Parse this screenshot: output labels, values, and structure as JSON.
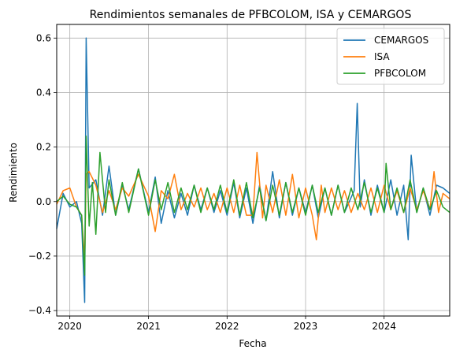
{
  "chart_data": {
    "type": "line",
    "title": "Rendimientos semanales de PFBCOLOM, ISA y CEMARGOS",
    "xlabel": "Fecha",
    "ylabel": "Rendimiento",
    "xlim": [
      "2019-11-01",
      "2024-11-01"
    ],
    "ylim": [
      -0.42,
      0.65
    ],
    "x_ticks": [
      "2020",
      "2021",
      "2022",
      "2023",
      "2024"
    ],
    "x_tick_dates": [
      "2020-01-01",
      "2021-01-01",
      "2022-01-01",
      "2023-01-01",
      "2024-01-01"
    ],
    "y_ticks": [
      -0.4,
      -0.2,
      0.0,
      0.2,
      0.4,
      0.6
    ],
    "y_tick_labels": [
      "−0.4",
      "−0.2",
      "0.0",
      "0.2",
      "0.4",
      "0.6"
    ],
    "grid": true,
    "legend_position": "top-right",
    "series": [
      {
        "name": "CEMARGOS",
        "color": "#1f77b4",
        "points": [
          [
            "2019-11-01",
            -0.1
          ],
          [
            "2019-12-01",
            0.03
          ],
          [
            "2020-01-01",
            -0.02
          ],
          [
            "2020-02-01",
            0.0
          ],
          [
            "2020-02-25",
            -0.08
          ],
          [
            "2020-03-10",
            -0.37
          ],
          [
            "2020-03-17",
            0.6
          ],
          [
            "2020-03-31",
            0.05
          ],
          [
            "2020-05-01",
            0.08
          ],
          [
            "2020-06-01",
            -0.05
          ],
          [
            "2020-07-01",
            0.13
          ],
          [
            "2020-08-01",
            -0.05
          ],
          [
            "2020-09-01",
            0.06
          ],
          [
            "2020-10-01",
            -0.03
          ],
          [
            "2020-11-15",
            0.12
          ],
          [
            "2021-01-01",
            -0.04
          ],
          [
            "2021-02-01",
            0.09
          ],
          [
            "2021-03-01",
            -0.08
          ],
          [
            "2021-04-01",
            0.04
          ],
          [
            "2021-05-01",
            -0.06
          ],
          [
            "2021-06-01",
            0.03
          ],
          [
            "2021-07-01",
            -0.05
          ],
          [
            "2021-08-01",
            0.06
          ],
          [
            "2021-09-01",
            -0.03
          ],
          [
            "2021-10-01",
            0.05
          ],
          [
            "2021-11-01",
            -0.04
          ],
          [
            "2021-12-01",
            0.04
          ],
          [
            "2022-01-01",
            -0.05
          ],
          [
            "2022-02-01",
            0.07
          ],
          [
            "2022-03-01",
            -0.06
          ],
          [
            "2022-04-01",
            0.05
          ],
          [
            "2022-05-01",
            -0.08
          ],
          [
            "2022-06-01",
            0.06
          ],
          [
            "2022-07-01",
            -0.07
          ],
          [
            "2022-08-01",
            0.11
          ],
          [
            "2022-09-01",
            -0.06
          ],
          [
            "2022-10-01",
            0.07
          ],
          [
            "2022-11-01",
            -0.05
          ],
          [
            "2022-12-01",
            0.05
          ],
          [
            "2023-01-01",
            -0.04
          ],
          [
            "2023-02-01",
            0.06
          ],
          [
            "2023-03-01",
            -0.06
          ],
          [
            "2023-04-01",
            0.05
          ],
          [
            "2023-05-01",
            -0.05
          ],
          [
            "2023-06-01",
            0.06
          ],
          [
            "2023-07-01",
            -0.04
          ],
          [
            "2023-08-15",
            0.04
          ],
          [
            "2023-08-29",
            0.36
          ],
          [
            "2023-09-12",
            -0.02
          ],
          [
            "2023-10-01",
            0.08
          ],
          [
            "2023-11-01",
            -0.05
          ],
          [
            "2023-12-01",
            0.06
          ],
          [
            "2024-01-01",
            -0.04
          ],
          [
            "2024-02-01",
            0.08
          ],
          [
            "2024-03-01",
            -0.05
          ],
          [
            "2024-04-01",
            0.06
          ],
          [
            "2024-04-22",
            -0.14
          ],
          [
            "2024-05-06",
            0.17
          ],
          [
            "2024-06-01",
            -0.04
          ],
          [
            "2024-07-01",
            0.05
          ],
          [
            "2024-08-01",
            -0.05
          ],
          [
            "2024-09-01",
            0.06
          ],
          [
            "2024-10-01",
            0.05
          ],
          [
            "2024-11-01",
            0.03
          ]
        ]
      },
      {
        "name": "ISA",
        "color": "#ff7f0e",
        "points": [
          [
            "2019-11-01",
            -0.01
          ],
          [
            "2019-12-01",
            0.04
          ],
          [
            "2020-01-01",
            0.05
          ],
          [
            "2020-02-01",
            -0.02
          ],
          [
            "2020-02-25",
            -0.05
          ],
          [
            "2020-03-10",
            -0.22
          ],
          [
            "2020-03-17",
            0.1
          ],
          [
            "2020-03-31",
            0.11
          ],
          [
            "2020-05-01",
            0.06
          ],
          [
            "2020-06-01",
            -0.04
          ],
          [
            "2020-07-01",
            0.04
          ],
          [
            "2020-08-01",
            -0.03
          ],
          [
            "2020-09-01",
            0.05
          ],
          [
            "2020-10-01",
            0.02
          ],
          [
            "2020-11-15",
            0.1
          ],
          [
            "2021-01-01",
            0.02
          ],
          [
            "2021-02-01",
            -0.11
          ],
          [
            "2021-03-01",
            0.04
          ],
          [
            "2021-04-01",
            0.01
          ],
          [
            "2021-05-01",
            0.1
          ],
          [
            "2021-06-01",
            -0.03
          ],
          [
            "2021-07-01",
            0.03
          ],
          [
            "2021-08-01",
            -0.02
          ],
          [
            "2021-09-01",
            0.05
          ],
          [
            "2021-10-01",
            -0.03
          ],
          [
            "2021-11-01",
            0.03
          ],
          [
            "2021-12-01",
            -0.04
          ],
          [
            "2022-01-01",
            0.05
          ],
          [
            "2022-02-01",
            -0.04
          ],
          [
            "2022-03-01",
            0.06
          ],
          [
            "2022-04-01",
            -0.05
          ],
          [
            "2022-05-01",
            -0.05
          ],
          [
            "2022-05-20",
            0.18
          ],
          [
            "2022-06-15",
            -0.06
          ],
          [
            "2022-07-01",
            0.06
          ],
          [
            "2022-08-01",
            -0.04
          ],
          [
            "2022-09-01",
            0.08
          ],
          [
            "2022-10-01",
            -0.05
          ],
          [
            "2022-11-01",
            0.1
          ],
          [
            "2022-12-01",
            -0.06
          ],
          [
            "2023-01-01",
            0.05
          ],
          [
            "2023-02-01",
            -0.05
          ],
          [
            "2023-02-20",
            -0.14
          ],
          [
            "2023-03-15",
            0.06
          ],
          [
            "2023-04-01",
            -0.04
          ],
          [
            "2023-05-01",
            0.05
          ],
          [
            "2023-06-01",
            -0.03
          ],
          [
            "2023-07-01",
            0.04
          ],
          [
            "2023-08-01",
            -0.04
          ],
          [
            "2023-09-01",
            0.03
          ],
          [
            "2023-10-01",
            -0.03
          ],
          [
            "2023-11-01",
            0.05
          ],
          [
            "2023-12-01",
            -0.04
          ],
          [
            "2024-01-01",
            0.06
          ],
          [
            "2024-02-01",
            -0.03
          ],
          [
            "2024-03-01",
            0.04
          ],
          [
            "2024-04-01",
            -0.04
          ],
          [
            "2024-05-01",
            0.05
          ],
          [
            "2024-06-01",
            -0.03
          ],
          [
            "2024-07-01",
            0.04
          ],
          [
            "2024-08-01",
            -0.03
          ],
          [
            "2024-08-20",
            0.11
          ],
          [
            "2024-09-10",
            -0.04
          ],
          [
            "2024-10-01",
            0.03
          ],
          [
            "2024-11-01",
            0.01
          ]
        ]
      },
      {
        "name": "PFBCOLOM",
        "color": "#2ca02c",
        "points": [
          [
            "2019-11-01",
            0.0
          ],
          [
            "2019-12-01",
            0.02
          ],
          [
            "2020-01-01",
            -0.01
          ],
          [
            "2020-02-01",
            -0.02
          ],
          [
            "2020-02-25",
            -0.05
          ],
          [
            "2020-03-10",
            -0.27
          ],
          [
            "2020-03-17",
            0.24
          ],
          [
            "2020-03-31",
            -0.09
          ],
          [
            "2020-04-15",
            0.07
          ],
          [
            "2020-05-01",
            -0.12
          ],
          [
            "2020-05-20",
            0.18
          ],
          [
            "2020-06-15",
            -0.04
          ],
          [
            "2020-07-01",
            0.08
          ],
          [
            "2020-08-01",
            -0.05
          ],
          [
            "2020-09-01",
            0.07
          ],
          [
            "2020-10-01",
            -0.04
          ],
          [
            "2020-11-15",
            0.12
          ],
          [
            "2021-01-01",
            -0.05
          ],
          [
            "2021-02-01",
            0.08
          ],
          [
            "2021-03-01",
            -0.03
          ],
          [
            "2021-04-01",
            0.07
          ],
          [
            "2021-05-01",
            -0.04
          ],
          [
            "2021-06-01",
            0.05
          ],
          [
            "2021-07-01",
            -0.03
          ],
          [
            "2021-08-01",
            0.06
          ],
          [
            "2021-09-01",
            -0.04
          ],
          [
            "2021-10-01",
            0.05
          ],
          [
            "2021-11-01",
            -0.03
          ],
          [
            "2021-12-01",
            0.06
          ],
          [
            "2022-01-01",
            -0.04
          ],
          [
            "2022-02-01",
            0.08
          ],
          [
            "2022-03-01",
            -0.05
          ],
          [
            "2022-04-01",
            0.07
          ],
          [
            "2022-05-01",
            -0.06
          ],
          [
            "2022-06-01",
            0.05
          ],
          [
            "2022-07-01",
            -0.07
          ],
          [
            "2022-08-01",
            0.06
          ],
          [
            "2022-09-01",
            -0.05
          ],
          [
            "2022-10-01",
            0.07
          ],
          [
            "2022-11-01",
            -0.04
          ],
          [
            "2022-12-01",
            0.05
          ],
          [
            "2023-01-01",
            -0.05
          ],
          [
            "2023-02-01",
            0.06
          ],
          [
            "2023-03-01",
            -0.04
          ],
          [
            "2023-04-01",
            0.05
          ],
          [
            "2023-05-01",
            -0.05
          ],
          [
            "2023-06-01",
            0.06
          ],
          [
            "2023-07-01",
            -0.04
          ],
          [
            "2023-08-01",
            0.05
          ],
          [
            "2023-09-01",
            -0.03
          ],
          [
            "2023-10-01",
            0.07
          ],
          [
            "2023-11-01",
            -0.04
          ],
          [
            "2023-12-01",
            0.05
          ],
          [
            "2024-01-01",
            -0.04
          ],
          [
            "2024-01-10",
            0.14
          ],
          [
            "2024-02-01",
            -0.03
          ],
          [
            "2024-03-01",
            0.05
          ],
          [
            "2024-04-01",
            -0.04
          ],
          [
            "2024-05-01",
            0.08
          ],
          [
            "2024-06-01",
            -0.04
          ],
          [
            "2024-07-01",
            0.05
          ],
          [
            "2024-08-01",
            -0.03
          ],
          [
            "2024-09-01",
            0.04
          ],
          [
            "2024-10-01",
            -0.02
          ],
          [
            "2024-11-01",
            -0.04
          ]
        ]
      }
    ]
  }
}
